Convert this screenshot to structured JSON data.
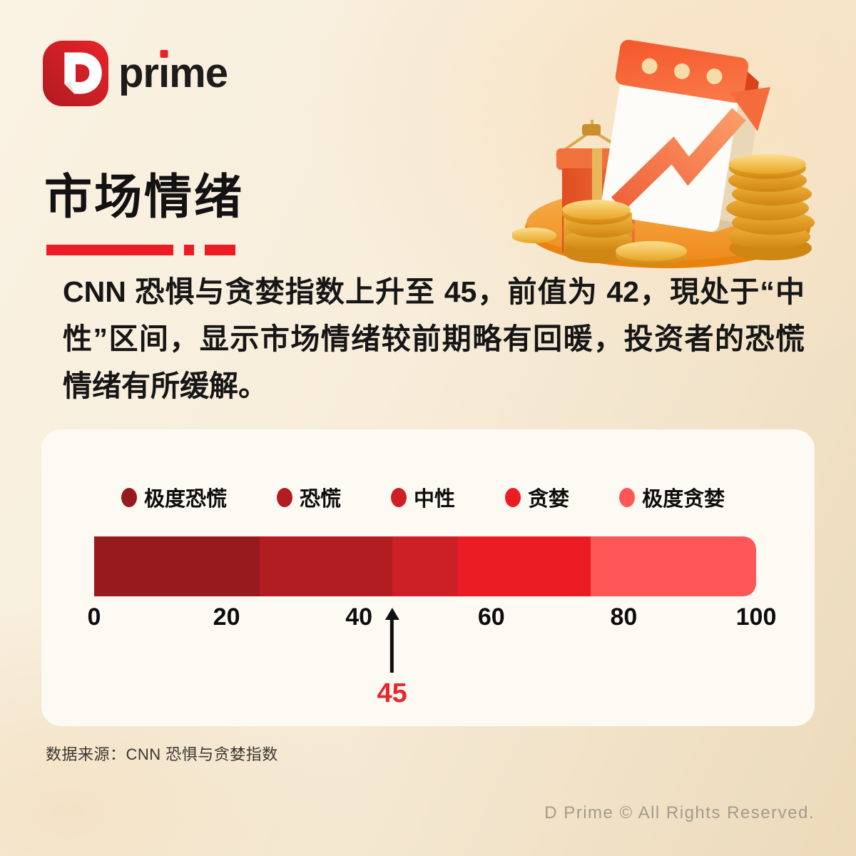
{
  "logo": {
    "mark": "D",
    "wordmark": "prime"
  },
  "header": {
    "title": "市场情绪"
  },
  "body": {
    "paragraph": "CNN 恐惧与贪婪指数上升至 45，前值为 42，現处于“中性”区间，显示市场情绪较前期略有回暖，投资者的恐慌情绪有所缓解。"
  },
  "chart_data": {
    "type": "bar",
    "subtype": "segmented-gauge",
    "xlim": [
      0,
      100
    ],
    "axis_ticks": [
      0,
      20,
      40,
      60,
      80,
      100
    ],
    "segments": [
      {
        "label": "极度恐慌",
        "range": [
          0,
          25
        ],
        "color": "#971B1E"
      },
      {
        "label": "恐慌",
        "range": [
          25,
          45
        ],
        "color": "#B21D22"
      },
      {
        "label": "中性",
        "range": [
          45,
          55
        ],
        "color": "#CD1F26"
      },
      {
        "label": "贪婪",
        "range": [
          55,
          75
        ],
        "color": "#EC1C24"
      },
      {
        "label": "极度贪婪",
        "range": [
          75,
          100
        ],
        "color": "#FF5757"
      }
    ],
    "legend_position": "top",
    "marker": {
      "value": 45,
      "label": "45",
      "color": "#E8272B"
    }
  },
  "colors": {
    "accent": "#ED1C24",
    "card_bg": "#FDFAF4"
  },
  "footer": {
    "source": "数据来源：CNN 恐惧与贪婪指数",
    "copyright": "D Prime © All Rights Reserved."
  }
}
